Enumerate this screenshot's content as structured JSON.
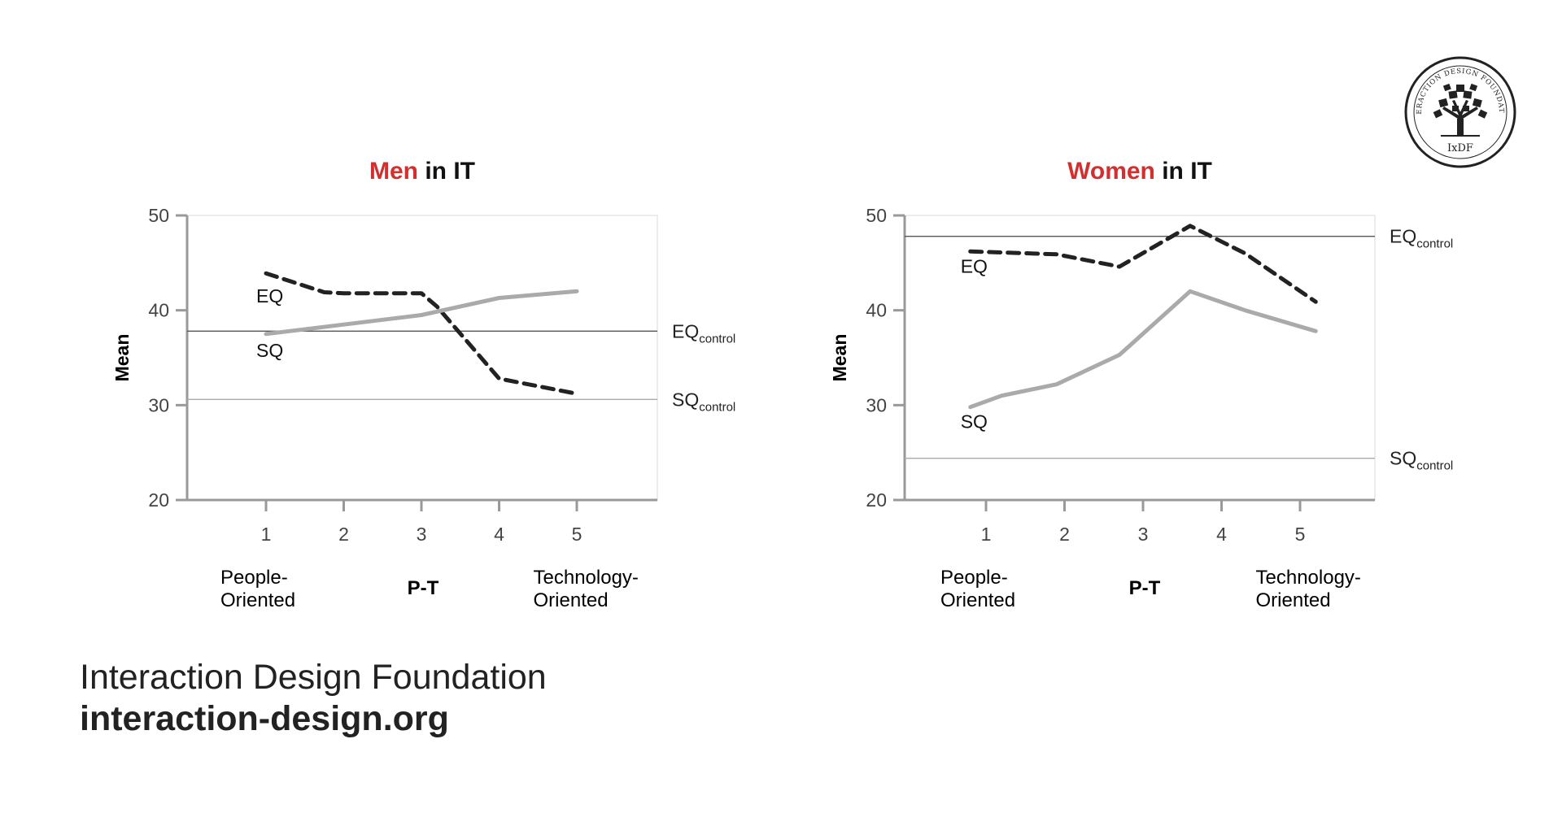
{
  "branding": {
    "org_name": "Interaction Design Foundation",
    "url": "interaction-design.org",
    "logo_ring_text": "INTERACTION DESIGN FOUNDATION",
    "logo_abbrev": "IxDF"
  },
  "colors": {
    "highlight": "#d32f2f",
    "eq_line": "#222222",
    "sq_line": "#aaaaaa",
    "axis": "#999999"
  },
  "chart_data": [
    {
      "type": "line",
      "title_highlight": "Men",
      "title_rest": " in IT",
      "ylabel": "Mean",
      "xlabel": "P-T",
      "x_left_label": [
        "People-",
        "Oriented"
      ],
      "x_right_label": [
        "Technology-",
        "Oriented"
      ],
      "x": [
        1,
        2,
        3,
        4,
        5
      ],
      "ylim": [
        20,
        50
      ],
      "yticks": [
        20,
        30,
        40,
        50
      ],
      "series": [
        {
          "name": "EQ",
          "style": "dashed",
          "x": [
            1,
            1.75,
            2,
            3,
            3.2,
            4,
            5
          ],
          "values": [
            43.9,
            41.9,
            41.8,
            41.8,
            40.4,
            32.8,
            31.2
          ]
        },
        {
          "name": "SQ",
          "style": "solid",
          "x": [
            1,
            2,
            3,
            4,
            5
          ],
          "values": [
            37.5,
            38.5,
            39.5,
            41.3,
            42.0
          ]
        }
      ],
      "reference_lines": [
        {
          "base": "EQ",
          "sub": "control",
          "value": 37.8,
          "color": "#555555"
        },
        {
          "base": "SQ",
          "sub": "control",
          "value": 30.6,
          "color": "#aaaaaa"
        }
      ]
    },
    {
      "type": "line",
      "title_highlight": "Women",
      "title_rest": " in IT",
      "ylabel": "Mean",
      "xlabel": "P-T",
      "x_left_label": [
        "People-",
        "Oriented"
      ],
      "x_right_label": [
        "Technology-",
        "Oriented"
      ],
      "x": [
        1,
        2,
        3,
        4,
        5
      ],
      "ylim": [
        20,
        50
      ],
      "yticks": [
        20,
        30,
        40,
        50
      ],
      "series": [
        {
          "name": "EQ",
          "style": "dashed",
          "x": [
            0.8,
            1.2,
            1.9,
            2.7,
            3.6,
            4.3,
            5.2
          ],
          "values": [
            46.2,
            46.1,
            45.9,
            44.6,
            48.9,
            46.0,
            40.9
          ]
        },
        {
          "name": "SQ",
          "style": "solid",
          "x": [
            0.8,
            1.2,
            1.9,
            2.7,
            3.6,
            4.3,
            5.2
          ],
          "values": [
            29.8,
            31.0,
            32.2,
            35.3,
            42.0,
            40.0,
            37.8
          ]
        }
      ],
      "reference_lines": [
        {
          "base": "EQ",
          "sub": "control",
          "value": 47.8,
          "color": "#555555"
        },
        {
          "base": "SQ",
          "sub": "control",
          "value": 24.4,
          "color": "#aaaaaa"
        }
      ]
    }
  ]
}
